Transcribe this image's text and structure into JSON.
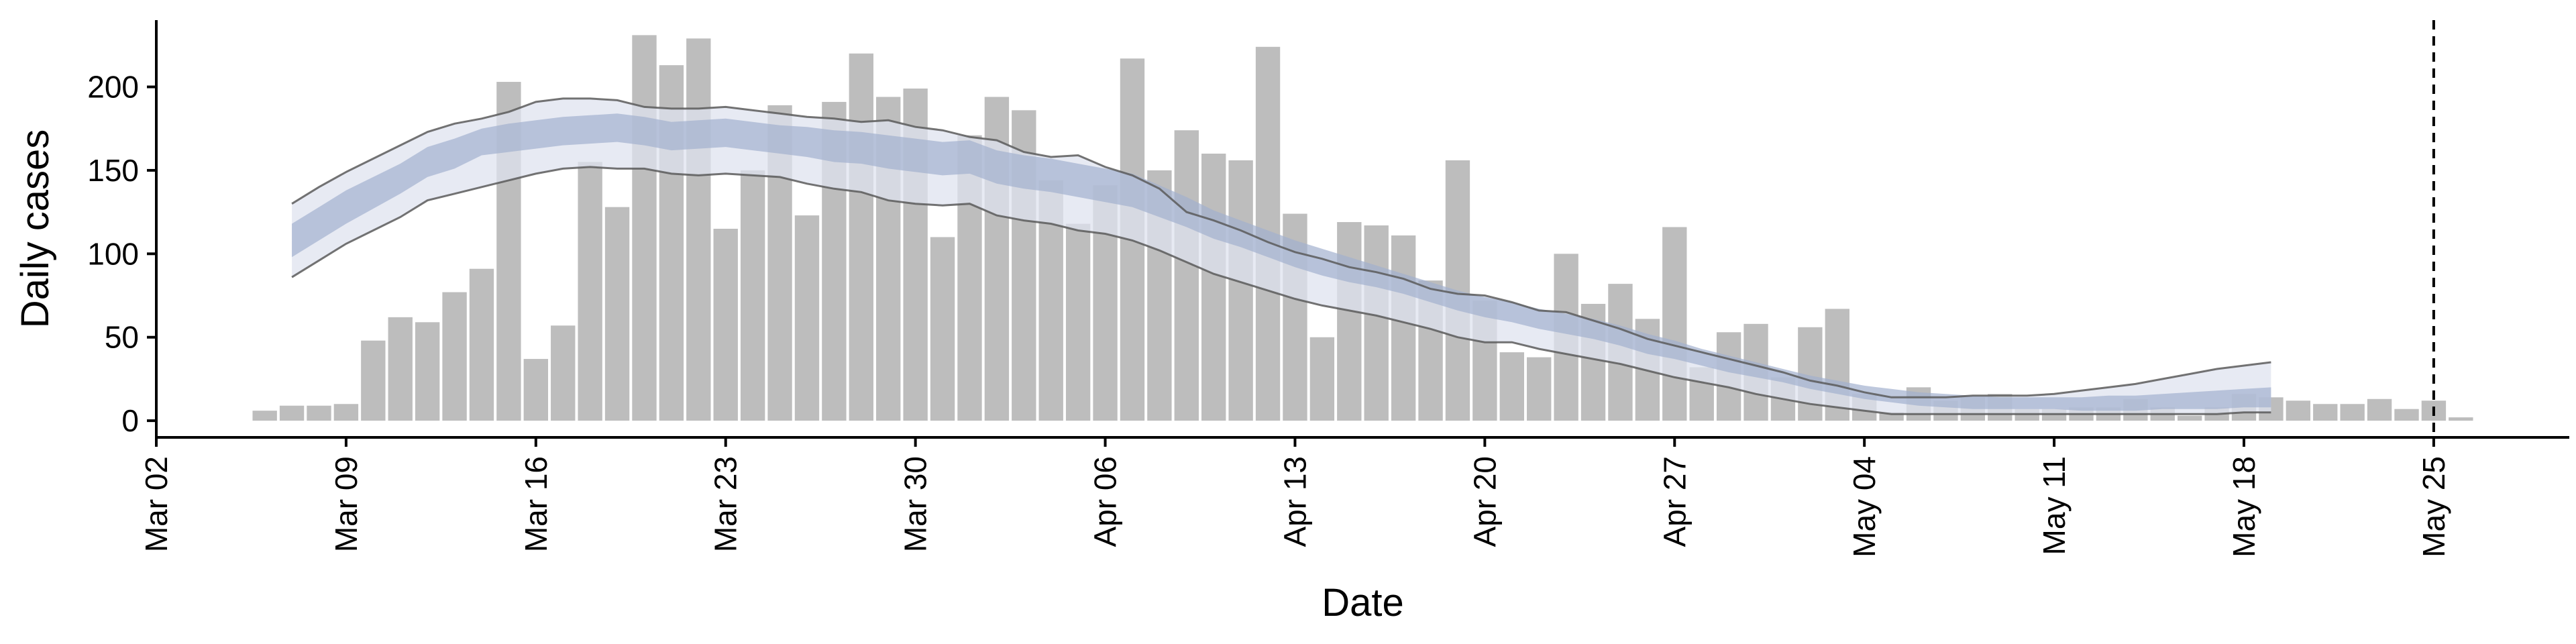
{
  "chart_data": {
    "type": "bar",
    "xlabel": "Date",
    "ylabel": "Daily cases",
    "x_range": [
      "2020-03-02",
      "2020-05-30"
    ],
    "ylim": [
      -10,
      240
    ],
    "x_ticks": [
      {
        "date": "2020-03-02",
        "label": "Mar 02"
      },
      {
        "date": "2020-03-09",
        "label": "Mar 09"
      },
      {
        "date": "2020-03-16",
        "label": "Mar 16"
      },
      {
        "date": "2020-03-23",
        "label": "Mar 23"
      },
      {
        "date": "2020-03-30",
        "label": "Mar 30"
      },
      {
        "date": "2020-04-06",
        "label": "Apr 06"
      },
      {
        "date": "2020-04-13",
        "label": "Apr 13"
      },
      {
        "date": "2020-04-20",
        "label": "Apr 20"
      },
      {
        "date": "2020-04-27",
        "label": "Apr 27"
      },
      {
        "date": "2020-05-04",
        "label": "May 04"
      },
      {
        "date": "2020-05-11",
        "label": "May 11"
      },
      {
        "date": "2020-05-18",
        "label": "May 18"
      },
      {
        "date": "2020-05-25",
        "label": "May 25"
      }
    ],
    "y_ticks": [
      0,
      50,
      100,
      150,
      200
    ],
    "cases": {
      "start_date": "2020-03-06",
      "color": "#bdbdbd",
      "values": [
        6,
        9,
        9,
        10,
        48,
        62,
        59,
        77,
        91,
        203,
        37,
        57,
        155,
        128,
        231,
        213,
        229,
        115,
        150,
        189,
        123,
        191,
        220,
        194,
        199,
        110,
        171,
        194,
        186,
        144,
        118,
        141,
        217,
        150,
        174,
        160,
        156,
        224,
        124,
        50,
        119,
        117,
        111,
        84,
        156,
        72,
        41,
        38,
        100,
        70,
        82,
        61,
        116,
        32,
        53,
        58,
        26,
        56,
        67,
        16,
        5,
        20,
        12,
        14,
        16,
        7,
        7,
        8,
        8,
        13,
        8,
        3,
        8,
        16,
        14,
        12,
        10,
        10,
        13,
        7,
        12,
        2
      ]
    },
    "estimate": {
      "start_date": "2020-03-07",
      "median": [
        108,
        118,
        128,
        136,
        145,
        155,
        160,
        167,
        170,
        172,
        174,
        175,
        176,
        174,
        171,
        172,
        173,
        171,
        169,
        168,
        166,
        165,
        162,
        160,
        158,
        159,
        153,
        150,
        148,
        145,
        142,
        139,
        132,
        125,
        118,
        112,
        106,
        100,
        95,
        90,
        86,
        82,
        77,
        72,
        68,
        65,
        61,
        58,
        55,
        51,
        46,
        42,
        38,
        34,
        30,
        27,
        23,
        20,
        17,
        15,
        13,
        12,
        11,
        10,
        10,
        10,
        10,
        10,
        10,
        11,
        12,
        12,
        13,
        14
      ],
      "inner_lower": [
        98,
        108,
        118,
        127,
        136,
        146,
        151,
        159,
        161,
        163,
        165,
        166,
        167,
        165,
        162,
        163,
        164,
        162,
        160,
        158,
        155,
        154,
        151,
        149,
        147,
        148,
        142,
        139,
        137,
        134,
        131,
        128,
        122,
        116,
        109,
        104,
        98,
        92,
        87,
        83,
        80,
        76,
        71,
        66,
        62,
        59,
        55,
        52,
        49,
        45,
        40,
        37,
        33,
        29,
        26,
        23,
        19,
        16,
        13,
        11,
        9,
        8,
        7,
        7,
        7,
        7,
        6,
        6,
        6,
        7,
        7,
        7,
        8,
        8
      ],
      "inner_upper": [
        118,
        128,
        138,
        146,
        154,
        164,
        169,
        175,
        178,
        180,
        182,
        183,
        184,
        182,
        179,
        180,
        181,
        179,
        177,
        176,
        174,
        173,
        171,
        169,
        167,
        168,
        162,
        159,
        157,
        154,
        151,
        148,
        141,
        134,
        126,
        120,
        114,
        108,
        103,
        98,
        93,
        88,
        83,
        78,
        74,
        71,
        67,
        64,
        61,
        57,
        52,
        48,
        43,
        39,
        35,
        31,
        27,
        24,
        21,
        19,
        17,
        16,
        15,
        14,
        14,
        14,
        14,
        15,
        15,
        16,
        17,
        18,
        19,
        20
      ],
      "outer_lower": [
        86,
        96,
        106,
        114,
        122,
        132,
        136,
        140,
        144,
        148,
        151,
        152,
        151,
        151,
        148,
        147,
        148,
        147,
        146,
        142,
        139,
        137,
        132,
        130,
        129,
        130,
        123,
        120,
        118,
        114,
        112,
        108,
        102,
        95,
        88,
        83,
        78,
        73,
        69,
        66,
        63,
        59,
        55,
        50,
        47,
        47,
        43,
        40,
        37,
        34,
        30,
        26,
        23,
        20,
        16,
        13,
        10,
        8,
        6,
        4,
        4,
        4,
        4,
        4,
        4,
        4,
        4,
        4,
        4,
        4,
        4,
        4,
        5,
        5
      ],
      "outer_upper": [
        130,
        140,
        149,
        157,
        165,
        173,
        178,
        181,
        185,
        191,
        193,
        193,
        192,
        188,
        187,
        187,
        188,
        186,
        184,
        182,
        181,
        179,
        180,
        176,
        174,
        170,
        168,
        161,
        158,
        159,
        152,
        147,
        139,
        125,
        120,
        114,
        107,
        101,
        97,
        92,
        89,
        85,
        79,
        76,
        75,
        71,
        66,
        65,
        60,
        55,
        49,
        45,
        41,
        37,
        33,
        29,
        24,
        21,
        17,
        14,
        14,
        14,
        15,
        15,
        15,
        16,
        18,
        20,
        22,
        25,
        28,
        31,
        33,
        35
      ]
    },
    "colors": {
      "inner_band": "#a3b1cf",
      "outer_band": "#dfe3ef",
      "outer_line": "#5a5a5a",
      "reference_line": "#000000"
    },
    "reference_line": {
      "date": "2020-05-25",
      "style": "dashed"
    }
  }
}
